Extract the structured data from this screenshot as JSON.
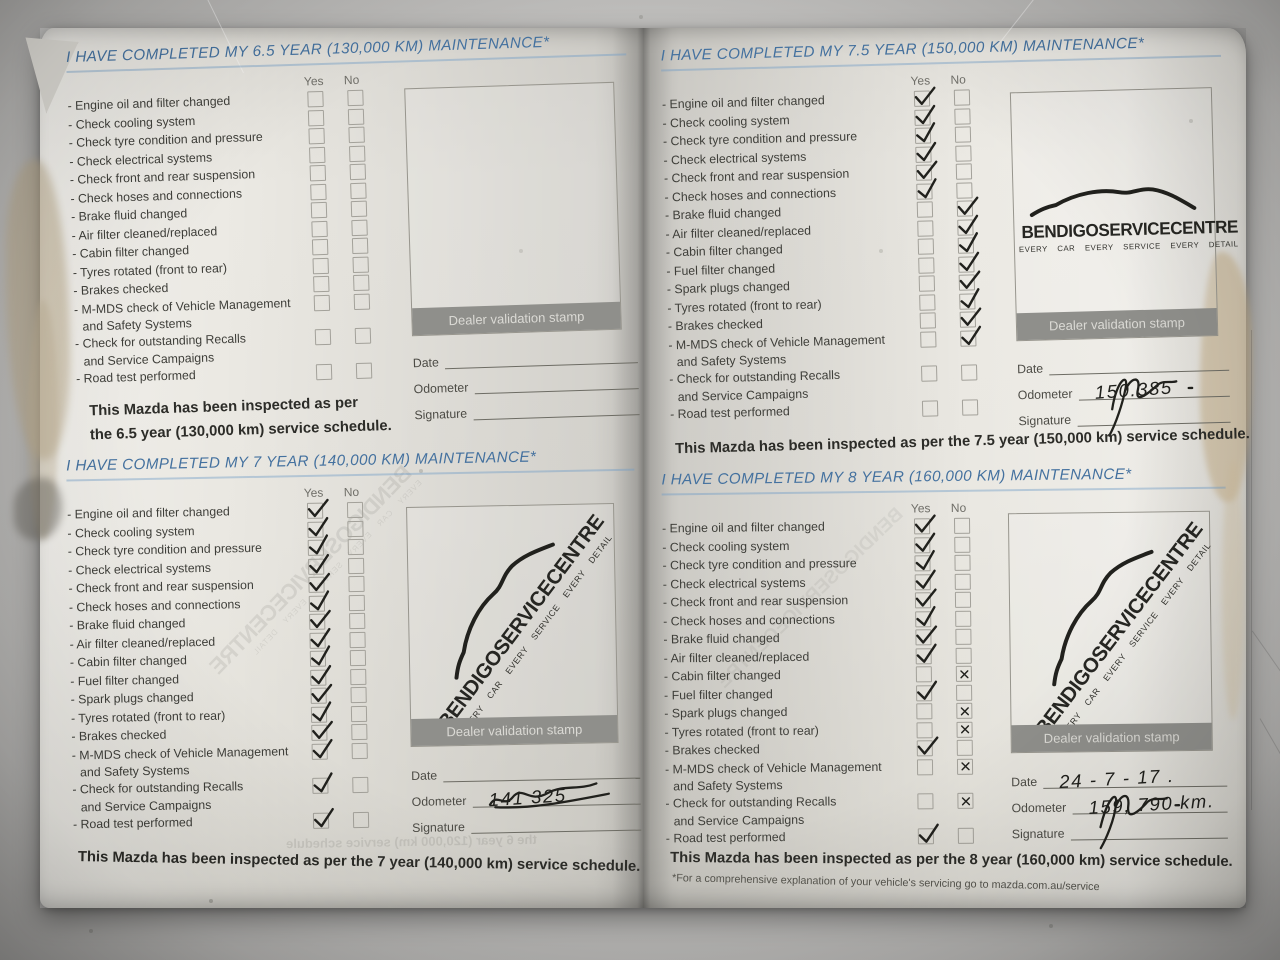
{
  "labels": {
    "yes": "Yes",
    "no": "No",
    "date": "Date",
    "odometer": "Odometer",
    "signature": "Signature",
    "stamp_bar": "Dealer validation stamp"
  },
  "stamp_logo": {
    "name": "BENDIGOSERVICECENTRE",
    "tagline": "EVERY CAR   EVERY SERVICE   EVERY DETAIL"
  },
  "footnote": "*For a comprehensive explanation of your vehicle's servicing go to mazda.com.au/service",
  "bleedthrough": {
    "stamp_text": "BENDIGOSERVICECENTRE",
    "tagline": "EVERY CAR  EVERY SERVICE  EVERY DETAIL",
    "line_text": "the 6 year (120,000 km) service schedule"
  },
  "colors": {
    "heading_blue": "#44719f",
    "paper": "#eae8e2",
    "ink": "#22221f",
    "stamp_bar_gray": "#8f8f8b"
  },
  "sections": [
    {
      "id": "6-5-year",
      "title": "I HAVE COMPLETED MY 6.5 YEAR (130,000 KM) MAINTENANCE*",
      "stamp": "empty",
      "date": "",
      "odometer": "",
      "signature": false,
      "summary_lines": [
        "This Mazda has been inspected as per",
        "the 6.5 year (130,000 km) service schedule."
      ],
      "items": [
        {
          "label": "Engine oil and filter changed",
          "yes": "",
          "no": ""
        },
        {
          "label": "Check cooling system",
          "yes": "",
          "no": ""
        },
        {
          "label": "Check tyre condition and pressure",
          "yes": "",
          "no": ""
        },
        {
          "label": "Check electrical systems",
          "yes": "",
          "no": ""
        },
        {
          "label": "Check front and rear suspension",
          "yes": "",
          "no": ""
        },
        {
          "label": "Check hoses and connections",
          "yes": "",
          "no": ""
        },
        {
          "label": "Brake fluid changed",
          "yes": "",
          "no": ""
        },
        {
          "label": "Air filter cleaned/replaced",
          "yes": "",
          "no": ""
        },
        {
          "label": "Cabin filter changed",
          "yes": "",
          "no": ""
        },
        {
          "label": "Tyres rotated (front to rear)",
          "yes": "",
          "no": ""
        },
        {
          "label": "Brakes checked",
          "yes": "",
          "no": ""
        },
        {
          "label": "M-MDS check of Vehicle Management",
          "label2": "and Safety Systems",
          "yes": "",
          "no": ""
        },
        {
          "label": "Check for outstanding Recalls",
          "label2": "and Service Campaigns",
          "yes": "",
          "no": ""
        },
        {
          "label": "Road test performed",
          "yes": "",
          "no": ""
        }
      ]
    },
    {
      "id": "7-year",
      "title": "I HAVE COMPLETED MY 7 YEAR (140,000 KM) MAINTENANCE*",
      "stamp": "diagonal",
      "date": "",
      "odometer": "141 325",
      "signature": true,
      "summary_lines": [
        "This Mazda has been inspected as per the 7 year (140,000 km) service schedule."
      ],
      "items": [
        {
          "label": "Engine oil and filter changed",
          "yes": "check",
          "no": ""
        },
        {
          "label": "Check cooling system",
          "yes": "check",
          "no": ""
        },
        {
          "label": "Check tyre condition and pressure",
          "yes": "check",
          "no": ""
        },
        {
          "label": "Check electrical systems",
          "yes": "check",
          "no": ""
        },
        {
          "label": "Check front and rear suspension",
          "yes": "check",
          "no": ""
        },
        {
          "label": "Check hoses and connections",
          "yes": "check",
          "no": ""
        },
        {
          "label": "Brake fluid changed",
          "yes": "check",
          "no": ""
        },
        {
          "label": "Air filter cleaned/replaced",
          "yes": "check",
          "no": ""
        },
        {
          "label": "Cabin filter changed",
          "yes": "check",
          "no": ""
        },
        {
          "label": "Fuel filter changed",
          "yes": "check",
          "no": ""
        },
        {
          "label": "Spark plugs changed",
          "yes": "check",
          "no": ""
        },
        {
          "label": "Tyres rotated (front to rear)",
          "yes": "check",
          "no": ""
        },
        {
          "label": "Brakes checked",
          "yes": "check",
          "no": ""
        },
        {
          "label": "M-MDS check of Vehicle Management",
          "label2": "and Safety Systems",
          "yes": "check",
          "no": ""
        },
        {
          "label": "Check for outstanding Recalls",
          "label2": "and Service Campaigns",
          "yes": "check",
          "no": ""
        },
        {
          "label": "Road test performed",
          "yes": "check",
          "no": ""
        }
      ]
    },
    {
      "id": "7-5-year",
      "title": "I HAVE COMPLETED MY 7.5 YEAR (150,000 KM) MAINTENANCE*",
      "stamp": "horizontal",
      "date": "",
      "odometer": "150.385",
      "signature": true,
      "summary_lines": [
        "This Mazda has been inspected as per the 7.5 year (150,000 km) service schedule."
      ],
      "items": [
        {
          "label": "Engine oil and filter changed",
          "yes": "check",
          "no": ""
        },
        {
          "label": "Check cooling system",
          "yes": "check",
          "no": ""
        },
        {
          "label": "Check tyre condition and pressure",
          "yes": "check",
          "no": ""
        },
        {
          "label": "Check electrical systems",
          "yes": "check",
          "no": ""
        },
        {
          "label": "Check front and rear suspension",
          "yes": "check",
          "no": ""
        },
        {
          "label": "Check hoses and connections",
          "yes": "check",
          "no": ""
        },
        {
          "label": "Brake fluid changed",
          "yes": "",
          "no": "check"
        },
        {
          "label": "Air filter cleaned/replaced",
          "yes": "",
          "no": "check"
        },
        {
          "label": "Cabin filter changed",
          "yes": "",
          "no": "check"
        },
        {
          "label": "Fuel filter changed",
          "yes": "",
          "no": "check"
        },
        {
          "label": "Spark plugs changed",
          "yes": "",
          "no": "check"
        },
        {
          "label": "Tyres rotated (front to rear)",
          "yes": "",
          "no": "check"
        },
        {
          "label": "Brakes checked",
          "yes": "",
          "no": "check"
        },
        {
          "label": "M-MDS check of Vehicle Management",
          "label2": "and Safety Systems",
          "yes": "",
          "no": "check"
        },
        {
          "label": "Check for outstanding Recalls",
          "label2": "and Service Campaigns",
          "yes": "",
          "no": ""
        },
        {
          "label": "Road test performed",
          "yes": "",
          "no": ""
        }
      ]
    },
    {
      "id": "8-year",
      "title": "I HAVE COMPLETED MY 8 YEAR (160,000 KM) MAINTENANCE*",
      "stamp": "diagonal",
      "date": "24 - 7 - 17 .",
      "odometer": "159, 790 km.",
      "signature": true,
      "summary_lines": [
        "This Mazda has been inspected as per the 8 year (160,000 km) service schedule."
      ],
      "items": [
        {
          "label": "Engine oil and filter changed",
          "yes": "check",
          "no": ""
        },
        {
          "label": "Check cooling system",
          "yes": "check",
          "no": ""
        },
        {
          "label": "Check tyre condition and pressure",
          "yes": "check",
          "no": ""
        },
        {
          "label": "Check electrical systems",
          "yes": "check",
          "no": ""
        },
        {
          "label": "Check front and rear suspension",
          "yes": "check",
          "no": ""
        },
        {
          "label": "Check hoses and connections",
          "yes": "check",
          "no": ""
        },
        {
          "label": "Brake fluid changed",
          "yes": "check",
          "no": ""
        },
        {
          "label": "Air filter cleaned/replaced",
          "yes": "check",
          "no": ""
        },
        {
          "label": "Cabin filter changed",
          "yes": "",
          "no": "cross"
        },
        {
          "label": "Fuel filter changed",
          "yes": "check",
          "no": ""
        },
        {
          "label": "Spark plugs changed",
          "yes": "",
          "no": "cross"
        },
        {
          "label": "Tyres rotated (front to rear)",
          "yes": "",
          "no": "cross"
        },
        {
          "label": "Brakes checked",
          "yes": "check",
          "no": ""
        },
        {
          "label": "M-MDS check of Vehicle Management",
          "label2": "and Safety Systems",
          "yes": "",
          "no": "cross"
        },
        {
          "label": "Check for outstanding Recalls",
          "label2": "and Service Campaigns",
          "yes": "",
          "no": "cross"
        },
        {
          "label": "Road test performed",
          "yes": "check",
          "no": ""
        }
      ]
    }
  ]
}
